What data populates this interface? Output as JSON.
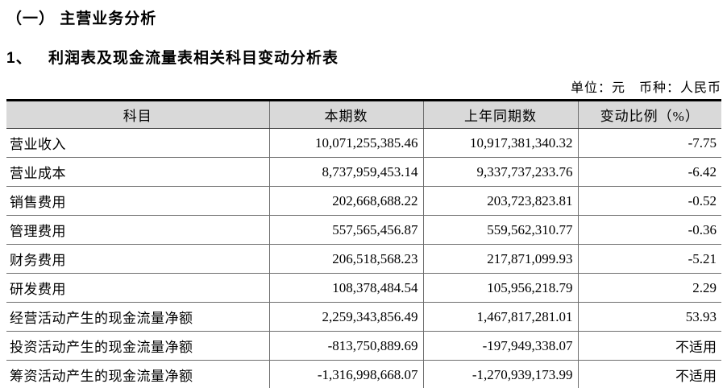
{
  "page": {
    "section_title": "（一） 主营业务分析",
    "subsection_number": "1、",
    "subsection_title": "利润表及现金流量表相关科目变动分析表",
    "unit_note": "单位：元　币种：人民币"
  },
  "table": {
    "header_bg": "#d9d9d9",
    "border_color": "#000000",
    "columns": [
      "科目",
      "本期数",
      "上年同期数",
      "变动比例（%）"
    ],
    "rows": [
      [
        "营业收入",
        "10,071,255,385.46",
        "10,917,381,340.32",
        "-7.75"
      ],
      [
        "营业成本",
        "8,737,959,453.14",
        "9,337,737,233.76",
        "-6.42"
      ],
      [
        "销售费用",
        "202,668,688.22",
        "203,723,823.81",
        "-0.52"
      ],
      [
        "管理费用",
        "557,565,456.87",
        "559,562,310.77",
        "-0.36"
      ],
      [
        "财务费用",
        "206,518,568.23",
        "217,871,099.93",
        "-5.21"
      ],
      [
        "研发费用",
        "108,378,484.54",
        "105,956,218.79",
        "2.29"
      ],
      [
        "经营活动产生的现金流量净额",
        "2,259,343,856.49",
        "1,467,817,281.01",
        "53.93"
      ],
      [
        "投资活动产生的现金流量净额",
        "-813,750,889.69",
        "-197,949,338.07",
        "不适用"
      ],
      [
        "筹资活动产生的现金流量净额",
        "-1,316,998,668.07",
        "-1,270,939,173.99",
        "不适用"
      ]
    ]
  }
}
